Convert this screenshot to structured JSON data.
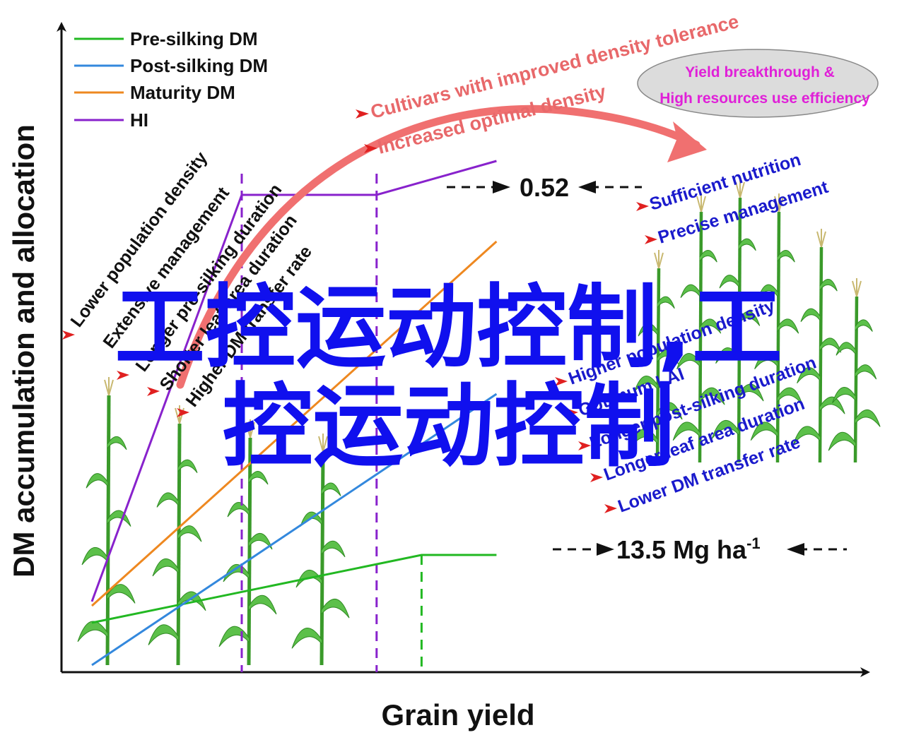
{
  "chart_data": {
    "type": "line",
    "xlabel": "Grain yield",
    "ylabel": "DM accumulation and allocation",
    "legend_position": "top-left",
    "grid": false,
    "colors": {
      "pre_silking": "#22b822",
      "post_silking": "#3388dd",
      "maturity": "#ee8820",
      "hi": "#8822cc",
      "arrow": "#f07070",
      "ellipse": "#dcdcdc"
    },
    "series": [
      {
        "name": "Pre-silking DM",
        "color": "#22b822",
        "x": [
          0,
          44,
          54
        ],
        "y": [
          0.1,
          0.26,
          0.26
        ]
      },
      {
        "name": "Post-silking DM",
        "color": "#3388dd",
        "x": [
          0,
          54
        ],
        "y": [
          0.0,
          0.64
        ]
      },
      {
        "name": "Maturity DM",
        "color": "#ee8820",
        "x": [
          0,
          54
        ],
        "y": [
          0.14,
          1.0
        ]
      },
      {
        "name": "HI",
        "color": "#8822cc",
        "x": [
          0,
          20,
          38,
          54
        ],
        "y": [
          0.15,
          1.11,
          1.11,
          1.19
        ]
      }
    ],
    "reference_lines": [
      {
        "x": 20,
        "style": "dashed",
        "color": "#8822cc"
      },
      {
        "x": 38,
        "style": "dashed",
        "color": "#8822cc"
      },
      {
        "x": 44,
        "style": "dashed",
        "color": "#22b822"
      }
    ],
    "value_labels": {
      "hi_value": "0.52",
      "yield_value": "13.5 Mg ha",
      "yield_unit_sup": "-1"
    }
  },
  "annotations": {
    "top_red": [
      "Cultivars with improved density tolerance",
      "Increased optimal density"
    ],
    "ellipse": [
      "Yield breakthrough &",
      "High resources use efficiency"
    ],
    "left_dark": [
      "Lower population density",
      "Extensive management",
      "Longer pre-silking duration",
      "Shorter leaf area duration",
      "Higher DM transfer rate"
    ],
    "right_blue_top": [
      "Sufficient nutrition",
      "Precise management"
    ],
    "right_blue_bottom": [
      "Higher population density",
      "Optimum LAI",
      "Longer post-silking duration",
      "Longer leaf area duration",
      "Lower DM transfer rate"
    ]
  },
  "watermark": {
    "line1": "工控运动控制,工",
    "line2": "控运动控制"
  }
}
